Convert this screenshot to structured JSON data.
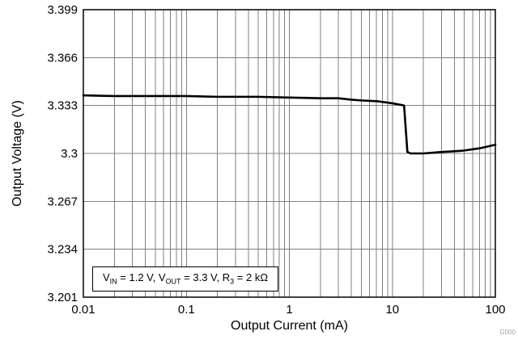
{
  "chart_data": {
    "type": "line",
    "title": "",
    "xlabel": "Output Current (mA)",
    "ylabel": "Output Voltage (V)",
    "x_scale": "log",
    "xlim": [
      0.01,
      100
    ],
    "ylim": [
      3.201,
      3.399
    ],
    "x_ticks": [
      0.01,
      0.1,
      1,
      10,
      100
    ],
    "x_tick_labels": [
      "0.01",
      "0.1",
      "1",
      "10",
      "100"
    ],
    "y_ticks": [
      3.201,
      3.234,
      3.267,
      3.3,
      3.333,
      3.366,
      3.399
    ],
    "y_tick_labels": [
      "3.201",
      "3.234",
      "3.267",
      "3.3",
      "3.333",
      "3.366",
      "3.399"
    ],
    "grid": true,
    "legend": "none",
    "watermark": "G000",
    "annotation": {
      "segments": [
        {
          "text": "V"
        },
        {
          "text": "IN",
          "sub": true
        },
        {
          "text": " = 1.2 V, V"
        },
        {
          "text": "OUT",
          "sub": true
        },
        {
          "text": " = 3.3 V, R"
        },
        {
          "text": "3",
          "sub": true
        },
        {
          "text": " = 2 kΩ"
        }
      ]
    },
    "series": [
      {
        "name": "output-voltage",
        "color": "#000000",
        "x": [
          0.01,
          0.02,
          0.05,
          0.1,
          0.2,
          0.5,
          1,
          2,
          3,
          4,
          5,
          7,
          9,
          10,
          11,
          12,
          13,
          14,
          15,
          20,
          25,
          30,
          40,
          50,
          70,
          100
        ],
        "y": [
          3.34,
          3.3395,
          3.3395,
          3.3395,
          3.339,
          3.339,
          3.3385,
          3.338,
          3.338,
          3.337,
          3.3365,
          3.336,
          3.335,
          3.3345,
          3.334,
          3.3335,
          3.333,
          3.301,
          3.3,
          3.3,
          3.3005,
          3.301,
          3.3015,
          3.302,
          3.3035,
          3.306
        ]
      }
    ]
  }
}
